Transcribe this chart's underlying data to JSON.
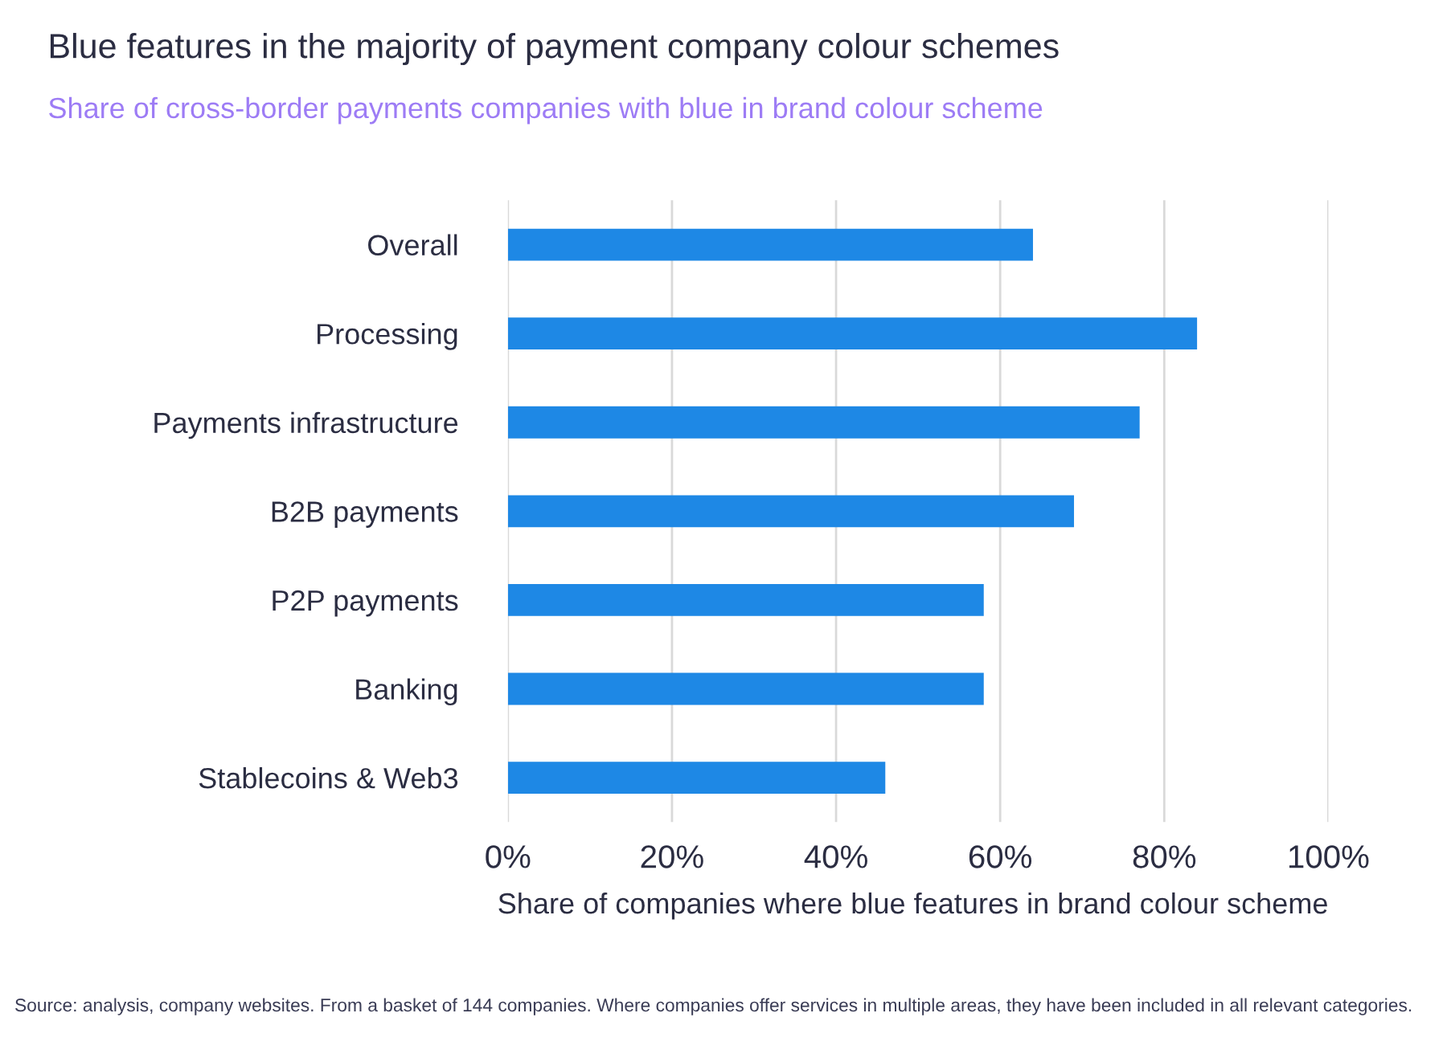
{
  "chart_data": {
    "type": "bar",
    "orientation": "horizontal",
    "title": "Blue features in the majority of payment company colour schemes",
    "subtitle": "Share of cross-border payments companies with blue in brand colour scheme",
    "xlabel": "Share of companies where blue features in brand colour scheme",
    "categories": [
      "Overall",
      "Processing",
      "Payments infrastructure",
      "B2B payments",
      "P2P payments",
      "Banking",
      "Stablecoins & Web3"
    ],
    "values": [
      64,
      84,
      77,
      69,
      58,
      58,
      46
    ],
    "color": "#1e88e5",
    "xlim": [
      0,
      100
    ],
    "xticks": [
      {
        "value": 0,
        "label": "0%"
      },
      {
        "value": 20,
        "label": "20%"
      },
      {
        "value": 40,
        "label": "40%"
      },
      {
        "value": 60,
        "label": "60%"
      },
      {
        "value": 80,
        "label": "80%"
      },
      {
        "value": 100,
        "label": "100%"
      }
    ],
    "grid": "x",
    "legend": false,
    "annotations": [
      "Source: analysis, company websites. From a basket of 144 companies. Where companies offer services in multiple areas, they have been included in all relevant categories."
    ]
  }
}
